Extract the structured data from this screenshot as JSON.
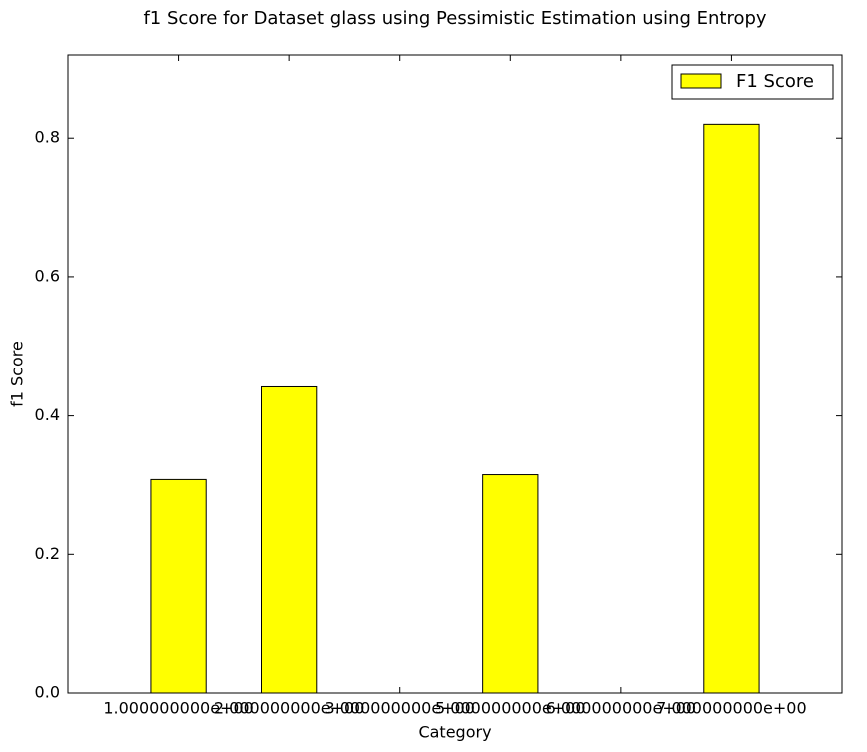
{
  "chart_data": {
    "type": "bar",
    "title": "f1 Score for Dataset glass using Pessimistic Estimation using Entropy",
    "x_label": "Category",
    "y_label": "f1 Score",
    "categories": [
      "1.000000000e+00",
      "2.000000000e+00",
      "3.000000000e+00",
      "5.000000000e+00",
      "6.000000000e+00",
      "7.000000000e+00"
    ],
    "x": [
      1,
      2,
      3,
      4,
      5,
      6
    ],
    "series": [
      {
        "name": "F1 Score",
        "color": "#ffff00",
        "values": [
          0.308,
          0.442,
          0,
          0.315,
          0,
          0.82
        ]
      }
    ],
    "xlim": [
      0,
      7
    ],
    "xticks": [
      0,
      1,
      2,
      3,
      4,
      5,
      6,
      7
    ],
    "ylim": [
      0,
      0.92
    ],
    "yticks": [
      {
        "value": 0,
        "label": "0.0"
      },
      0.2,
      0.4,
      0.6,
      0.8
    ],
    "bar_width": 0.5,
    "legend": "upper right"
  }
}
